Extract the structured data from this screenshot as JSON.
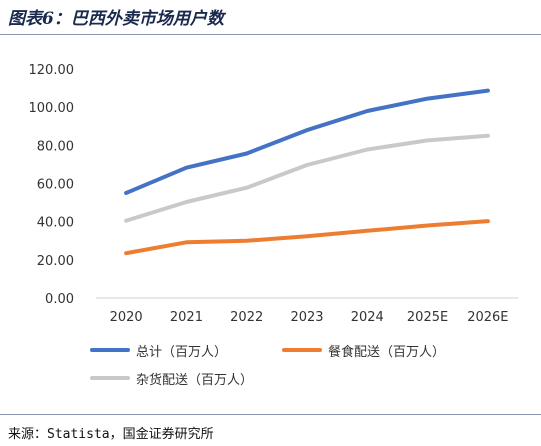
{
  "header": {
    "title": "图表6：巴西外卖市场用户数"
  },
  "footer": {
    "source": "来源：Statista，国金证券研究所"
  },
  "chart_data": {
    "type": "line",
    "categories": [
      "2020",
      "2021",
      "2022",
      "2023",
      "2024",
      "2025E",
      "2026E"
    ],
    "y_ticks": [
      "0.00",
      "20.00",
      "40.00",
      "60.00",
      "80.00",
      "100.00",
      "120.00"
    ],
    "ylim": [
      0,
      120
    ],
    "grid": false,
    "legend_position": "bottom",
    "series": [
      {
        "name": "总计（百万人）",
        "color": "#4472c4",
        "values": [
          55.0,
          68.3,
          75.7,
          88.0,
          98.0,
          104.5,
          108.7
        ]
      },
      {
        "name": "餐食配送（百万人）",
        "color": "#ed7d31",
        "values": [
          23.5,
          29.2,
          30.0,
          32.4,
          35.2,
          38.0,
          40.3
        ]
      },
      {
        "name": "杂货配送（百万人）",
        "color": "#c9c9c9",
        "values": [
          40.5,
          50.3,
          57.8,
          69.7,
          77.8,
          82.6,
          85.0
        ]
      }
    ]
  }
}
